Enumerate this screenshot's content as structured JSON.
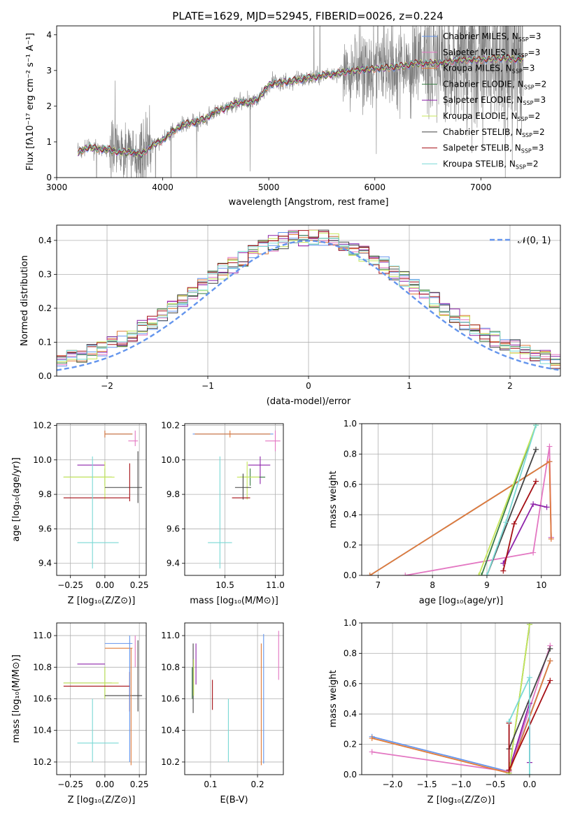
{
  "title": "PLATE=1629, MJD=52945, FIBERID=0026, z=0.224",
  "colors": {
    "chabrier_miles": "#6495ed",
    "salpeter_miles": "#e377c2",
    "kroupa_miles": "#e07b39",
    "chabrier_elodie": "#3a7d44",
    "salpeter_elodie": "#8e24aa",
    "kroupa_elodie": "#c6e65a",
    "chabrier_stelib": "#444444",
    "salpeter_stelib": "#a50f15",
    "kroupa_stelib": "#7ad9d5",
    "data": "#7f7f7f",
    "normal": "#6495ed",
    "grid": "#b0b0b0"
  },
  "chart_data": [
    {
      "id": "spectrum",
      "type": "line",
      "xlabel": "wavelength [Angstrom, rest frame]",
      "ylabel": "Flux [f_λ 10^-17 erg cm^-2 s^-1 A^-1]",
      "xlim": [
        3000,
        7750
      ],
      "ylim": [
        0,
        4.25
      ],
      "xticks": [
        "3000",
        "4000",
        "5000",
        "6000",
        "7000"
      ],
      "yticks": [
        "0",
        "1",
        "2",
        "3",
        "4"
      ],
      "model_shape": {
        "x": [
          3200,
          3300,
          3400,
          3500,
          3600,
          3700,
          3800,
          3900,
          4000,
          4100,
          4200,
          4300,
          4400,
          4500,
          4600,
          4700,
          4800,
          4900,
          5000,
          5200,
          5400,
          5600,
          5800,
          6000,
          6200,
          6400,
          6600,
          6800,
          7000,
          7200,
          7400
        ],
        "y": [
          0.7,
          0.85,
          0.8,
          0.78,
          0.7,
          0.72,
          0.65,
          0.9,
          1.05,
          1.3,
          1.5,
          1.55,
          1.65,
          1.85,
          1.95,
          2.1,
          2.1,
          2.2,
          2.6,
          2.7,
          2.8,
          2.9,
          3.0,
          3.05,
          3.1,
          3.2,
          3.2,
          3.3,
          3.3,
          3.35,
          3.3
        ]
      },
      "legend": [
        {
          "label": "Chabrier MILES, N",
          "sub": "SSP",
          "suffix": "=3",
          "color_key": "chabrier_miles"
        },
        {
          "label": "Salpeter MILES, N",
          "sub": "SSP",
          "suffix": "=3",
          "color_key": "salpeter_miles"
        },
        {
          "label": "Kroupa MILES, N",
          "sub": "SSP",
          "suffix": "=3",
          "color_key": "kroupa_miles"
        },
        {
          "label": "Chabrier ELODIE, N",
          "sub": "SSP",
          "suffix": "=2",
          "color_key": "chabrier_elodie"
        },
        {
          "label": "Salpeter ELODIE, N",
          "sub": "SSP",
          "suffix": "=3",
          "color_key": "salpeter_elodie"
        },
        {
          "label": "Kroupa ELODIE, N",
          "sub": "SSP",
          "suffix": "=2",
          "color_key": "kroupa_elodie"
        },
        {
          "label": "Chabrier STELIB, N",
          "sub": "SSP",
          "suffix": "=2",
          "color_key": "chabrier_stelib"
        },
        {
          "label": "Salpeter STELIB, N",
          "sub": "SSP",
          "suffix": "=3",
          "color_key": "salpeter_stelib"
        },
        {
          "label": "Kroupa STELIB, N",
          "sub": "SSP",
          "suffix": "=2",
          "color_key": "kroupa_stelib"
        }
      ],
      "legend_loc": "upper-right"
    },
    {
      "id": "residuals",
      "type": "histogram",
      "xlabel": "(data-model)/error",
      "ylabel": "Normed distribution",
      "xlim": [
        -2.5,
        2.5
      ],
      "ylim": [
        0,
        0.445
      ],
      "xticks": [
        "−2",
        "−1",
        "0",
        "1",
        "2"
      ],
      "yticks": [
        "0.0",
        "0.1",
        "0.2",
        "0.3",
        "0.4"
      ],
      "bin_width": 0.1,
      "legend": "𝒩(0, 1)",
      "grid": true
    },
    {
      "id": "age_vs_Z",
      "type": "errorbar",
      "xlabel": "Z [log10(Z/Z⊙)]",
      "ylabel": "age [log10(age/yr)]",
      "xlim": [
        -0.35,
        0.3
      ],
      "ylim": [
        9.33,
        10.21
      ],
      "xticks": [
        "−0.25",
        "0.00",
        "0.25"
      ],
      "yticks": [
        "9.4",
        "9.6",
        "9.8",
        "10.0",
        "10.2"
      ],
      "points": [
        {
          "k": "chabrier_miles",
          "x": 0.0,
          "xe": [
            0,
            0.2
          ],
          "y": 10.15,
          "ye": [
            0.02,
            0.02
          ]
        },
        {
          "k": "salpeter_miles",
          "x": 0.22,
          "xe": [
            0.05,
            0.02
          ],
          "y": 10.11,
          "ye": [
            0.03,
            0.06
          ]
        },
        {
          "k": "kroupa_miles",
          "x": 0.0,
          "xe": [
            0,
            0.2
          ],
          "y": 10.15,
          "ye": [
            0.02,
            0.02
          ]
        },
        {
          "k": "chabrier_elodie",
          "x": 0.0,
          "xe": [
            0.3,
            0.05
          ],
          "y": 9.9,
          "ye": [
            0.05,
            0.05
          ]
        },
        {
          "k": "salpeter_elodie",
          "x": -0.1,
          "xe": [
            0.1,
            0.1
          ],
          "y": 9.97,
          "ye": [
            0,
            0
          ]
        },
        {
          "k": "kroupa_elodie",
          "x": 0.0,
          "xe": [
            0.3,
            0.07
          ],
          "y": 9.9,
          "ye": [
            0.13,
            0.09
          ]
        },
        {
          "k": "chabrier_stelib",
          "x": 0.1,
          "xe": [
            0.1,
            0.17
          ],
          "y": 9.84,
          "ye": [
            0,
            0
          ]
        },
        {
          "k": "salpeter_stelib",
          "x": 0.0,
          "xe": [
            0.3,
            0.18
          ],
          "y": 9.78,
          "ye": [
            0,
            0
          ]
        },
        {
          "k": "kroupa_stelib",
          "x": -0.09,
          "xe": [
            0.11,
            0.19
          ],
          "y": 9.52,
          "ye": [
            0.15,
            0.5
          ]
        },
        {
          "k": "salpeter_stelib",
          "x": 0.18,
          "xe": [
            0,
            0
          ],
          "y": 9.86,
          "ye": [
            0.1,
            0.12
          ]
        },
        {
          "k": "chabrier_stelib",
          "x": 0.24,
          "xe": [
            0,
            0
          ],
          "y": 9.85,
          "ye": [
            0.1,
            0.2
          ]
        }
      ]
    },
    {
      "id": "age_vs_mass",
      "type": "errorbar",
      "xlabel": "mass [log10(M/M⊙)]",
      "ylabel": "",
      "xlim": [
        10.1,
        11.08
      ],
      "ylim": [
        9.33,
        10.21
      ],
      "xticks": [
        "10.5",
        "11.0"
      ],
      "yticks": [
        "9.4",
        "9.6",
        "9.8",
        "10.0",
        "10.2"
      ],
      "points": [
        {
          "k": "chabrier_miles",
          "x": 10.6,
          "xe": [
            0.42,
            0.38
          ],
          "y": 10.15,
          "ye": [
            0,
            0
          ]
        },
        {
          "k": "kroupa_miles",
          "x": 10.55,
          "xe": [
            0.35,
            0.4
          ],
          "y": 10.15,
          "ye": [
            0.02,
            0.02
          ]
        },
        {
          "k": "salpeter_miles",
          "x": 11.0,
          "xe": [
            0.1,
            0.05
          ],
          "y": 10.11,
          "ye": [
            0.06,
            0.06
          ]
        },
        {
          "k": "salpeter_elodie",
          "x": 10.85,
          "xe": [
            0.12,
            0.1
          ],
          "y": 9.97,
          "ye": [
            0.11,
            0.05
          ]
        },
        {
          "k": "chabrier_elodie",
          "x": 10.75,
          "xe": [
            0.1,
            0.15
          ],
          "y": 9.9,
          "ye": [
            0.05,
            0.05
          ]
        },
        {
          "k": "kroupa_elodie",
          "x": 10.72,
          "xe": [
            0.1,
            0.12
          ],
          "y": 9.9,
          "ye": [
            0.13,
            0.09
          ]
        },
        {
          "k": "chabrier_stelib",
          "x": 10.68,
          "xe": [
            0.08,
            0.08
          ],
          "y": 9.84,
          "ye": [
            0.07,
            0.08
          ]
        },
        {
          "k": "salpeter_stelib",
          "x": 10.67,
          "xe": [
            0.1,
            0.08
          ],
          "y": 9.78,
          "ye": [
            0,
            0
          ]
        },
        {
          "k": "kroupa_stelib",
          "x": 10.45,
          "xe": [
            0.12,
            0.12
          ],
          "y": 9.52,
          "ye": [
            0.15,
            0.5
          ]
        }
      ]
    },
    {
      "id": "mass_weight_vs_age",
      "type": "line",
      "xlabel": "age [log10(age/yr)]",
      "ylabel": "mass weight",
      "xlim": [
        6.7,
        10.35
      ],
      "ylim": [
        0,
        1
      ],
      "xticks": [
        "7",
        "8",
        "9",
        "10"
      ],
      "yticks": [
        "0.0",
        "0.2",
        "0.4",
        "0.6",
        "0.8",
        "1.0"
      ],
      "series": [
        {
          "k": "chabrier_miles",
          "x": [
            6.85,
            10.15,
            10.18
          ],
          "y": [
            0.0,
            0.75,
            0.25
          ]
        },
        {
          "k": "salpeter_miles",
          "x": [
            7.5,
            9.85,
            10.15,
            10.18
          ],
          "y": [
            0.0,
            0.15,
            0.85,
            0.25
          ]
        },
        {
          "k": "kroupa_miles",
          "x": [
            6.85,
            10.15,
            10.18
          ],
          "y": [
            0.0,
            0.75,
            0.24
          ]
        },
        {
          "k": "chabrier_elodie",
          "x": [
            8.9,
            9.9
          ],
          "y": [
            0.0,
            0.99
          ]
        },
        {
          "k": "salpeter_elodie",
          "x": [
            9.3,
            9.85,
            10.1
          ],
          "y": [
            0.08,
            0.47,
            0.45
          ]
        },
        {
          "k": "kroupa_elodie",
          "x": [
            8.85,
            9.9
          ],
          "y": [
            0.0,
            0.99
          ]
        },
        {
          "k": "chabrier_stelib",
          "x": [
            9.0,
            9.9
          ],
          "y": [
            0.0,
            0.83
          ]
        },
        {
          "k": "salpeter_stelib",
          "x": [
            9.3,
            9.5,
            9.9
          ],
          "y": [
            0.03,
            0.34,
            0.62
          ]
        },
        {
          "k": "kroupa_stelib",
          "x": [
            9.0,
            9.35,
            9.9
          ],
          "y": [
            0.0,
            0.35,
            0.99
          ]
        }
      ]
    },
    {
      "id": "mass_vs_Z",
      "type": "errorbar",
      "xlabel": "Z [log10(Z/Z⊙)]",
      "ylabel": "mass [log10(M/M⊙)]",
      "xlim": [
        -0.35,
        0.3
      ],
      "ylim": [
        10.12,
        11.08
      ],
      "xticks": [
        "−0.25",
        "0.00",
        "0.25"
      ],
      "yticks": [
        "10.2",
        "10.4",
        "10.6",
        "10.8",
        "11.0"
      ],
      "points": [
        {
          "k": "chabrier_miles",
          "x": 0.0,
          "xe": [
            0,
            0.2
          ],
          "y": 10.95,
          "ye": [
            0,
            0
          ]
        },
        {
          "k": "kroupa_miles",
          "x": 0.0,
          "xe": [
            0,
            0.2
          ],
          "y": 10.92,
          "ye": [
            0,
            0
          ]
        },
        {
          "k": "salpeter_miles",
          "x": 0.22,
          "xe": [
            0,
            0
          ],
          "y": 10.9,
          "ye": [
            0.1,
            0.1
          ]
        },
        {
          "k": "salpeter_elodie",
          "x": -0.1,
          "xe": [
            0.1,
            0.1
          ],
          "y": 10.82,
          "ye": [
            0,
            0
          ]
        },
        {
          "k": "chabrier_elodie",
          "x": 0.0,
          "xe": [
            0.3,
            0.05
          ],
          "y": 10.7,
          "ye": [
            0.1,
            0.1
          ]
        },
        {
          "k": "kroupa_elodie",
          "x": 0.0,
          "xe": [
            0.3,
            0.1
          ],
          "y": 10.7,
          "ye": [
            0.1,
            0.1
          ]
        },
        {
          "k": "salpeter_stelib",
          "x": 0.0,
          "xe": [
            0.3,
            0.18
          ],
          "y": 10.68,
          "ye": [
            0,
            0
          ]
        },
        {
          "k": "chabrier_stelib",
          "x": 0.1,
          "xe": [
            0.1,
            0.17
          ],
          "y": 10.62,
          "ye": [
            0,
            0
          ]
        },
        {
          "k": "kroupa_stelib",
          "x": -0.09,
          "xe": [
            0.11,
            0.19
          ],
          "y": 10.32,
          "ye": [
            0.12,
            0.28
          ]
        },
        {
          "k": "salpeter_stelib",
          "x": 0.18,
          "xe": [
            0,
            0
          ],
          "y": 10.62,
          "ye": [
            0.1,
            0.15
          ]
        },
        {
          "k": "chabrier_stelib",
          "x": 0.24,
          "xe": [
            0,
            0
          ],
          "y": 10.72,
          "ye": [
            0.2,
            0.25
          ]
        },
        {
          "k": "chabrier_miles",
          "x": 0.18,
          "xe": [
            0,
            0
          ],
          "y": 10.6,
          "ye": [
            0.4,
            0.4
          ]
        },
        {
          "k": "kroupa_miles",
          "x": 0.19,
          "xe": [
            0,
            0
          ],
          "y": 10.55,
          "ye": [
            0.37,
            0.37
          ]
        }
      ]
    },
    {
      "id": "mass_vs_ebv",
      "type": "errorbar",
      "xlabel": "E(B-V)",
      "ylabel": "",
      "xlim": [
        0.045,
        0.255
      ],
      "ylim": [
        10.12,
        11.08
      ],
      "xticks": [
        "0.1",
        "0.2"
      ],
      "yticks": [
        "10.2",
        "10.4",
        "10.6",
        "10.8",
        "11.0"
      ],
      "points": [
        {
          "k": "chabrier_stelib",
          "x": 0.063,
          "xe": [
            0,
            0
          ],
          "y": 10.72,
          "ye": [
            0.21,
            0.23
          ]
        },
        {
          "k": "chabrier_elodie",
          "x": 0.061,
          "xe": [
            0,
            0
          ],
          "y": 10.7,
          "ye": [
            0.1,
            0.1
          ]
        },
        {
          "k": "kroupa_elodie",
          "x": 0.064,
          "xe": [
            0,
            0
          ],
          "y": 10.72,
          "ye": [
            0.1,
            0.13
          ]
        },
        {
          "k": "salpeter_elodie",
          "x": 0.069,
          "xe": [
            0,
            0
          ],
          "y": 10.82,
          "ye": [
            0.13,
            0.13
          ]
        },
        {
          "k": "salpeter_stelib",
          "x": 0.104,
          "xe": [
            0,
            0
          ],
          "y": 10.62,
          "ye": [
            0.09,
            0.1
          ]
        },
        {
          "k": "kroupa_stelib",
          "x": 0.138,
          "xe": [
            0,
            0
          ],
          "y": 10.4,
          "ye": [
            0.2,
            0.2
          ]
        },
        {
          "k": "kroupa_miles",
          "x": 0.208,
          "xe": [
            0,
            0
          ],
          "y": 10.57,
          "ye": [
            0.39,
            0.38
          ]
        },
        {
          "k": "chabrier_miles",
          "x": 0.213,
          "xe": [
            0,
            0
          ],
          "y": 10.6,
          "ye": [
            0.41,
            0.41
          ]
        },
        {
          "k": "salpeter_miles",
          "x": 0.245,
          "xe": [
            0,
            0
          ],
          "y": 10.88,
          "ye": [
            0.16,
            0.15
          ]
        }
      ]
    },
    {
      "id": "mass_weight_vs_Z",
      "type": "line",
      "xlabel": "Z [log10(Z/Z⊙)]",
      "ylabel": "mass weight",
      "xlim": [
        -2.45,
        0.45
      ],
      "ylim": [
        0,
        1
      ],
      "xticks": [
        "−2.0",
        "−1.5",
        "−1.0",
        "−0.5",
        "0.0"
      ],
      "yticks": [
        "0.0",
        "0.2",
        "0.4",
        "0.6",
        "0.8",
        "1.0"
      ],
      "series": [
        {
          "k": "chabrier_miles",
          "x": [
            -2.3,
            -0.3,
            0.3
          ],
          "y": [
            0.25,
            0.02,
            0.75
          ]
        },
        {
          "k": "salpeter_miles",
          "x": [
            -2.3,
            -0.3,
            0.3
          ],
          "y": [
            0.15,
            0.02,
            0.85
          ]
        },
        {
          "k": "kroupa_miles",
          "x": [
            -2.3,
            -0.3,
            0.3
          ],
          "y": [
            0.24,
            0.01,
            0.75
          ]
        },
        {
          "k": "chabrier_elodie",
          "x": [
            -0.3,
            0.0
          ],
          "y": [
            0.01,
            0.99
          ]
        },
        {
          "k": "salpeter_elodie",
          "x": [
            -0.3,
            0.0,
            0.0
          ],
          "y": [
            0.03,
            0.47,
            0.08
          ]
        },
        {
          "k": "kroupa_elodie",
          "x": [
            -0.3,
            0.0
          ],
          "y": [
            0.01,
            0.99
          ]
        },
        {
          "k": "chabrier_stelib",
          "x": [
            -0.3,
            0.3
          ],
          "y": [
            0.17,
            0.83
          ]
        },
        {
          "k": "salpeter_stelib",
          "x": [
            -0.3,
            -0.3,
            0.3
          ],
          "y": [
            0.34,
            0.03,
            0.62
          ]
        },
        {
          "k": "kroupa_stelib",
          "x": [
            -0.3,
            0.0,
            0.0
          ],
          "y": [
            0.35,
            0.64,
            0.0
          ]
        }
      ]
    }
  ]
}
